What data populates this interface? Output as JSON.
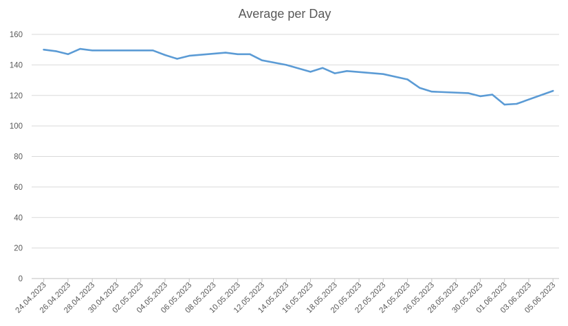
{
  "chart_data": {
    "type": "line",
    "title": "Average per Day",
    "xlabel": "",
    "ylabel": "",
    "ylim": [
      0,
      160
    ],
    "yticks": [
      0,
      20,
      40,
      60,
      80,
      100,
      120,
      140,
      160
    ],
    "grid": true,
    "legend": "none",
    "x_tick_labels": [
      "24.04.2023",
      "26.04.2023",
      "28.04.2023",
      "30.04.2023",
      "02.05.2023",
      "04.05.2023",
      "06.05.2023",
      "08.05.2023",
      "10.05.2023",
      "12.05.2023",
      "14.05.2023",
      "16.05.2023",
      "18.05.2023",
      "20.05.2023",
      "22.05.2023",
      "24.05.2023",
      "26.05.2023",
      "28.05.2023",
      "30.05.2023",
      "01.06.2023",
      "03.06.2023",
      "05.06.2023"
    ],
    "series": [
      {
        "color": "#5b9bd5",
        "points": [
          {
            "x": "24.04.2023",
            "y": 150
          },
          {
            "x": "25.04.2023",
            "y": 149
          },
          {
            "x": "26.04.2023",
            "y": 147
          },
          {
            "x": "27.04.2023",
            "y": 150.5
          },
          {
            "x": "28.04.2023",
            "y": 149.5
          },
          {
            "x": "30.04.2023",
            "y": 149.5
          },
          {
            "x": "03.05.2023",
            "y": 149.5
          },
          {
            "x": "04.05.2023",
            "y": 146.5
          },
          {
            "x": "05.05.2023",
            "y": 144
          },
          {
            "x": "06.05.2023",
            "y": 146
          },
          {
            "x": "09.05.2023",
            "y": 148
          },
          {
            "x": "10.05.2023",
            "y": 147
          },
          {
            "x": "11.05.2023",
            "y": 147
          },
          {
            "x": "12.05.2023",
            "y": 143
          },
          {
            "x": "14.05.2023",
            "y": 140
          },
          {
            "x": "16.05.2023",
            "y": 135.5
          },
          {
            "x": "17.05.2023",
            "y": 138
          },
          {
            "x": "18.05.2023",
            "y": 134.5
          },
          {
            "x": "19.05.2023",
            "y": 136
          },
          {
            "x": "22.05.2023",
            "y": 134
          },
          {
            "x": "24.05.2023",
            "y": 130.5
          },
          {
            "x": "25.05.2023",
            "y": 125
          },
          {
            "x": "26.05.2023",
            "y": 122.5
          },
          {
            "x": "29.05.2023",
            "y": 121.5
          },
          {
            "x": "30.05.2023",
            "y": 119.5
          },
          {
            "x": "31.05.2023",
            "y": 120.5
          },
          {
            "x": "01.06.2023",
            "y": 114
          },
          {
            "x": "02.06.2023",
            "y": 114.5
          },
          {
            "x": "05.06.2023",
            "y": 123
          }
        ]
      }
    ]
  }
}
